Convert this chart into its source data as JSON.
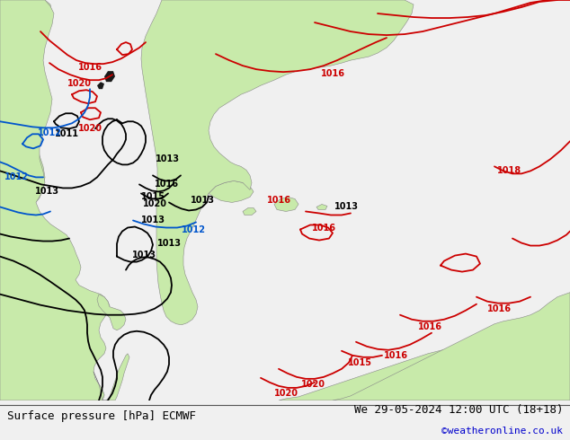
{
  "title_left": "Surface pressure [hPa] ECMWF",
  "title_right": "We 29-05-2024 12:00 UTC (18+18)",
  "copyright": "©weatheronline.co.uk",
  "land_color": "#c8eaaa",
  "ocean_color": "#f0f0f0",
  "coast_color": "#888888",
  "isobar_red": "#cc0000",
  "isobar_black": "#000000",
  "isobar_blue": "#0055cc",
  "footer_bg": "#d8d8d8",
  "title_fontsize": 9,
  "label_fontsize": 7,
  "copyright_color": "#0000cc",
  "copyright_fontsize": 8
}
